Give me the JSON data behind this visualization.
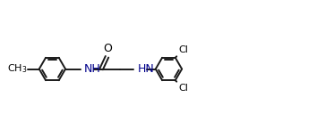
{
  "background": "#ffffff",
  "line_color": "#1a1a1a",
  "text_color": "#000000",
  "nh_color": "#00008b",
  "bond_lw": 1.4,
  "figsize": [
    3.73,
    1.55
  ],
  "dpi": 100,
  "fontsize": 9,
  "r": 0.3,
  "xlim": [
    0.0,
    7.6
  ],
  "ylim": [
    0.55,
    1.75
  ]
}
